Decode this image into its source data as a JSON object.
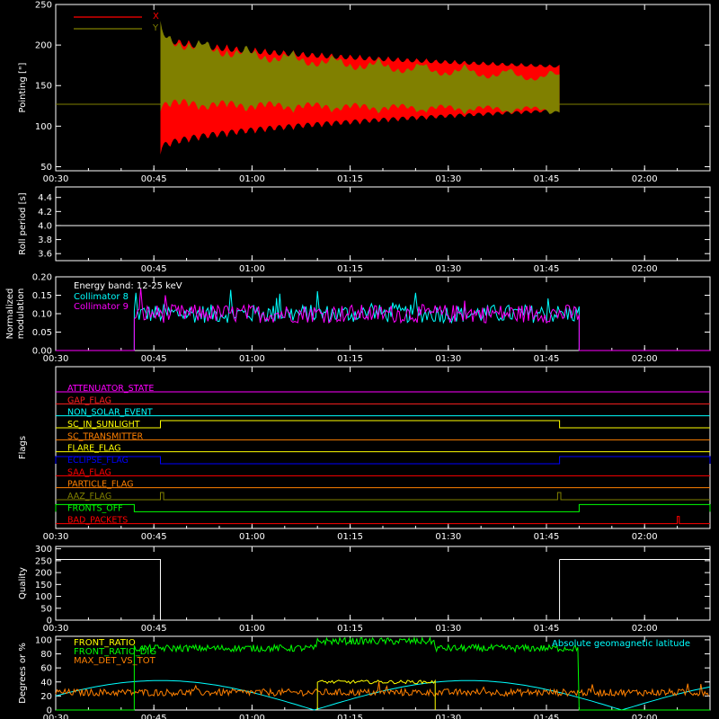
{
  "chart_data": [
    {
      "type": "area",
      "ylabel": "Pointing [\"]",
      "y_ticks": [
        "50",
        "100",
        "150",
        "200",
        "250"
      ],
      "ylim": [
        45,
        250
      ],
      "x_ticks": [
        "00:30",
        "00:45",
        "01:00",
        "01:15",
        "01:30",
        "01:45",
        "02:00"
      ],
      "x_domain": [
        "00:30",
        "02:10"
      ],
      "reference_line": 127,
      "series": [
        {
          "name": "X",
          "color": "#ff0000",
          "envelope": {
            "start": "00:46",
            "end": "01:47",
            "upper_start": 218,
            "upper_end": 176,
            "lower_start": 65,
            "lower_end": 117
          }
        },
        {
          "name": "Y",
          "color": "#808000",
          "envelope": {
            "start": "00:46",
            "end": "01:47",
            "upper_start": 230,
            "upper_end": 170,
            "lower_start": 118,
            "lower_end": 113
          }
        }
      ]
    },
    {
      "type": "line",
      "ylabel": "Roll period [s]",
      "y_ticks": [
        "3.6",
        "3.8",
        "4.0",
        "4.2",
        "4.4"
      ],
      "ylim": [
        3.5,
        4.55
      ],
      "x_ticks": [
        "00:45",
        "01:00",
        "01:15",
        "01:30",
        "01:45",
        "02:00"
      ],
      "series": [
        {
          "color": "#ffffff",
          "constant": 4.0
        }
      ]
    },
    {
      "type": "line",
      "ylabel": "Normalized modulation",
      "y_ticks": [
        "0.00",
        "0.05",
        "0.10",
        "0.15",
        "0.20"
      ],
      "ylim": [
        0,
        0.2
      ],
      "x_ticks": [
        "00:30",
        "00:45",
        "01:00",
        "01:15",
        "01:30",
        "01:45",
        "02:00"
      ],
      "annotation": "Energy band: 12-25 keV",
      "active_range": [
        "00:42",
        "01:50"
      ],
      "series": [
        {
          "name": "Collimator 8",
          "color": "#00ffff",
          "mean": 0.1
        },
        {
          "name": "Collimator 9",
          "color": "#ff00ff",
          "mean": 0.1
        }
      ]
    },
    {
      "type": "line",
      "ylabel": "Flags",
      "x_ticks": [
        "00:30",
        "00:45",
        "01:00",
        "01:15",
        "01:30",
        "01:45",
        "02:00"
      ],
      "flags": [
        {
          "name": "ATTENUATOR_STATE",
          "color": "#ff00ff"
        },
        {
          "name": "GAP_FLAG",
          "color": "#ff2020"
        },
        {
          "name": "NON_SOLAR_EVENT",
          "color": "#00ffff"
        },
        {
          "name": "SC_IN_SUNLIGHT",
          "color": "#ffff00",
          "high": [
            [
              "00:46",
              "01:47"
            ]
          ]
        },
        {
          "name": "SC_TRANSMITTER",
          "color": "#ff8000"
        },
        {
          "name": "FLARE_FLAG",
          "color": "#ffff00"
        },
        {
          "name": "ECLIPSE_FLAG",
          "color": "#0000ff",
          "high": [
            [
              "00:30",
              "00:46"
            ],
            [
              "01:47",
              "02:10"
            ]
          ]
        },
        {
          "name": "SAA_FLAG",
          "color": "#ff0000"
        },
        {
          "name": "PARTICLE_FLAG",
          "color": "#ff8000"
        },
        {
          "name": "AAZ_FLAG",
          "color": "#808000",
          "high": [
            [
              "00:46",
              "00:46.5"
            ],
            [
              "01:46.7",
              "01:47.2"
            ]
          ]
        },
        {
          "name": "FRONTS_OFF",
          "color": "#00ff00",
          "high": [
            [
              "00:30",
              "00:42"
            ],
            [
              "01:50",
              "02:10"
            ]
          ]
        },
        {
          "name": "BAD_PACKETS",
          "color": "#ff0000",
          "high": [
            [
              "02:05",
              "02:05.3"
            ]
          ]
        }
      ]
    },
    {
      "type": "line",
      "ylabel": "Quality",
      "y_ticks": [
        "0",
        "50",
        "100",
        "150",
        "200",
        "250",
        "300"
      ],
      "ylim": [
        0,
        310
      ],
      "x_ticks": [
        "00:30",
        "00:45",
        "01:00",
        "01:15",
        "01:30",
        "01:45",
        "02:00"
      ],
      "series": [
        {
          "color": "#ffffff",
          "high_value": 255,
          "high_ranges": [
            [
              "00:30",
              "00:46"
            ],
            [
              "01:47",
              "02:10"
            ]
          ]
        }
      ]
    },
    {
      "type": "line",
      "ylabel": "Degrees or %",
      "y_ticks": [
        "0",
        "20",
        "40",
        "60",
        "80",
        "100"
      ],
      "ylim": [
        0,
        105
      ],
      "x_ticks": [
        "00:30",
        "00:45",
        "01:00",
        "01:15",
        "01:30",
        "01:45",
        "02:00"
      ],
      "series": [
        {
          "name": "FRONT_RATIO",
          "color": "#ffff00",
          "level": 40,
          "range": [
            "01:10",
            "01:28"
          ]
        },
        {
          "name": "FRONT_RATIO_DIG",
          "color": "#00ff00",
          "level": 88,
          "high_level": 98,
          "high_range": [
            "01:10",
            "01:28"
          ],
          "range": [
            "00:42",
            "01:50"
          ]
        },
        {
          "name": "MAX_DET_VS_TOT",
          "color": "#ff8000",
          "level": 25
        },
        {
          "name": "Absolute geomagnetic latitude",
          "color": "#00ffff",
          "min": 0,
          "max": 42
        }
      ]
    }
  ]
}
